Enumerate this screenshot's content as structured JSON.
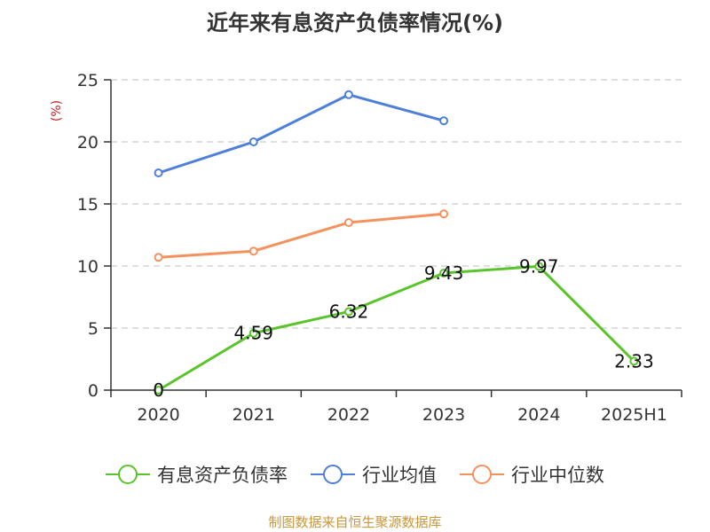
{
  "chart_data": {
    "type": "line",
    "title": "近年来有息资产负债率情况(%)",
    "ylabel": "(%)",
    "xlabel": "",
    "ylim": [
      0,
      25
    ],
    "yticks": [
      "0",
      "5",
      "10",
      "15",
      "20",
      "25"
    ],
    "categories": [
      "2020",
      "2021",
      "2022",
      "2023",
      "2024",
      "2025H1"
    ],
    "grid": true,
    "legend_position": "bottom",
    "series": [
      {
        "name": "有息资产负债率",
        "color": "#5ac52a",
        "values": [
          0,
          4.59,
          6.32,
          9.43,
          9.97,
          2.33
        ],
        "labels": [
          "0",
          "4.59",
          "6.32",
          "9.43",
          "9.97",
          "2.33"
        ]
      },
      {
        "name": "行业均值",
        "color": "#4e7fd9",
        "values": [
          17.5,
          20.0,
          23.8,
          21.7,
          null,
          null
        ]
      },
      {
        "name": "行业中位数",
        "color": "#f4925e",
        "values": [
          10.7,
          11.2,
          13.5,
          14.2,
          null,
          null
        ]
      }
    ]
  },
  "source": "制图数据来自恒生聚源数据库",
  "ylabel_color": "#cc2222"
}
